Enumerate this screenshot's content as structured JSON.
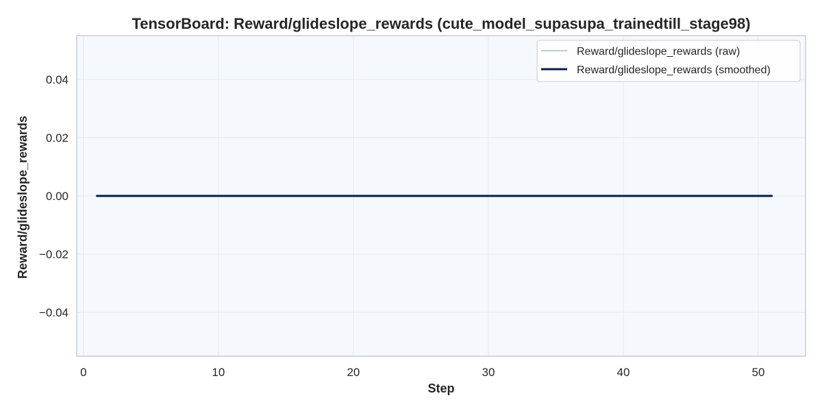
{
  "chart_data": {
    "type": "line",
    "title": "TensorBoard: Reward/glideslope_rewards (cute_model_supasupa_trainedtill_stage98)",
    "xlabel": "Step",
    "ylabel": "Reward/glideslope_rewards",
    "xlim": [
      -0.5,
      53.5
    ],
    "ylim": [
      -0.055,
      0.055
    ],
    "xticks": [
      0,
      10,
      20,
      30,
      40,
      50
    ],
    "xtick_labels": [
      "0",
      "10",
      "20",
      "30",
      "40",
      "50"
    ],
    "yticks": [
      0.04,
      0.02,
      0.0,
      -0.02,
      -0.04
    ],
    "ytick_labels": [
      "0.04",
      "0.02",
      "0.00",
      "−0.02",
      "−0.04"
    ],
    "grid": true,
    "legend_position": "top-right",
    "x": [
      1,
      2,
      3,
      4,
      5,
      6,
      7,
      8,
      9,
      10,
      11,
      12,
      13,
      14,
      15,
      16,
      17,
      18,
      19,
      20,
      21,
      22,
      23,
      24,
      25,
      26,
      27,
      28,
      29,
      30,
      31,
      32,
      33,
      34,
      35,
      36,
      37,
      38,
      39,
      40,
      41,
      42,
      43,
      44,
      45,
      46,
      47,
      48,
      49,
      50,
      51
    ],
    "series": [
      {
        "name": "Reward/glideslope_rewards (raw)",
        "color": "#9fbfb8",
        "values": [
          0,
          0,
          0,
          0,
          0,
          0,
          0,
          0,
          0,
          0,
          0,
          0,
          0,
          0,
          0,
          0,
          0,
          0,
          0,
          0,
          0,
          0,
          0,
          0,
          0,
          0,
          0,
          0,
          0,
          0,
          0,
          0,
          0,
          0,
          0,
          0,
          0,
          0,
          0,
          0,
          0,
          0,
          0,
          0,
          0,
          0,
          0,
          0,
          0,
          0,
          0
        ]
      },
      {
        "name": "Reward/glideslope_rewards (smoothed)",
        "color": "#0c1a4b",
        "values": [
          0,
          0,
          0,
          0,
          0,
          0,
          0,
          0,
          0,
          0,
          0,
          0,
          0,
          0,
          0,
          0,
          0,
          0,
          0,
          0,
          0,
          0,
          0,
          0,
          0,
          0,
          0,
          0,
          0,
          0,
          0,
          0,
          0,
          0,
          0,
          0,
          0,
          0,
          0,
          0,
          0,
          0,
          0,
          0,
          0,
          0,
          0,
          0,
          0,
          0,
          0
        ]
      }
    ],
    "colors": {
      "plot_background": "#f5f9fd",
      "grid": "#e4e9ee",
      "axes_border": "#cccccc"
    }
  }
}
